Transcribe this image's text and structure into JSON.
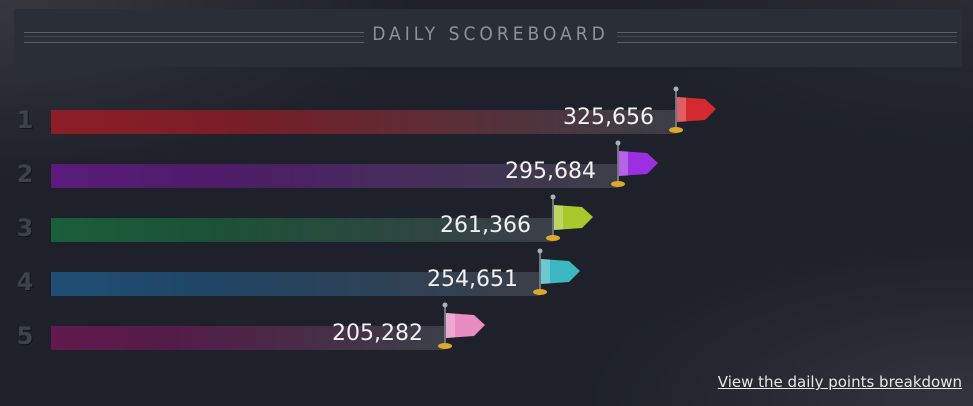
{
  "scoreboard": {
    "title": "DAILY SCOREBOARD",
    "link_label": "View the daily points breakdown",
    "max_score": 325656,
    "entries": [
      {
        "rank": "1",
        "score": 325656,
        "score_label": "325,656",
        "color": "#d42a2f",
        "bar_color": "#8e1d26",
        "flag_color": "red"
      },
      {
        "rank": "2",
        "score": 295684,
        "score_label": "295,684",
        "color": "#9c2fe0",
        "bar_color": "#5a1b7a",
        "flag_color": "purple"
      },
      {
        "rank": "3",
        "score": 261366,
        "score_label": "261,366",
        "color": "#a8c92c",
        "bar_color": "#1b5e3a",
        "flag_color": "lime"
      },
      {
        "rank": "4",
        "score": 254651,
        "score_label": "254,651",
        "color": "#3bb7c0",
        "bar_color": "#1f4f75",
        "flag_color": "cyan"
      },
      {
        "rank": "5",
        "score": 205282,
        "score_label": "205,282",
        "color": "#e88dc2",
        "bar_color": "#611a4e",
        "flag_color": "pink"
      }
    ]
  }
}
